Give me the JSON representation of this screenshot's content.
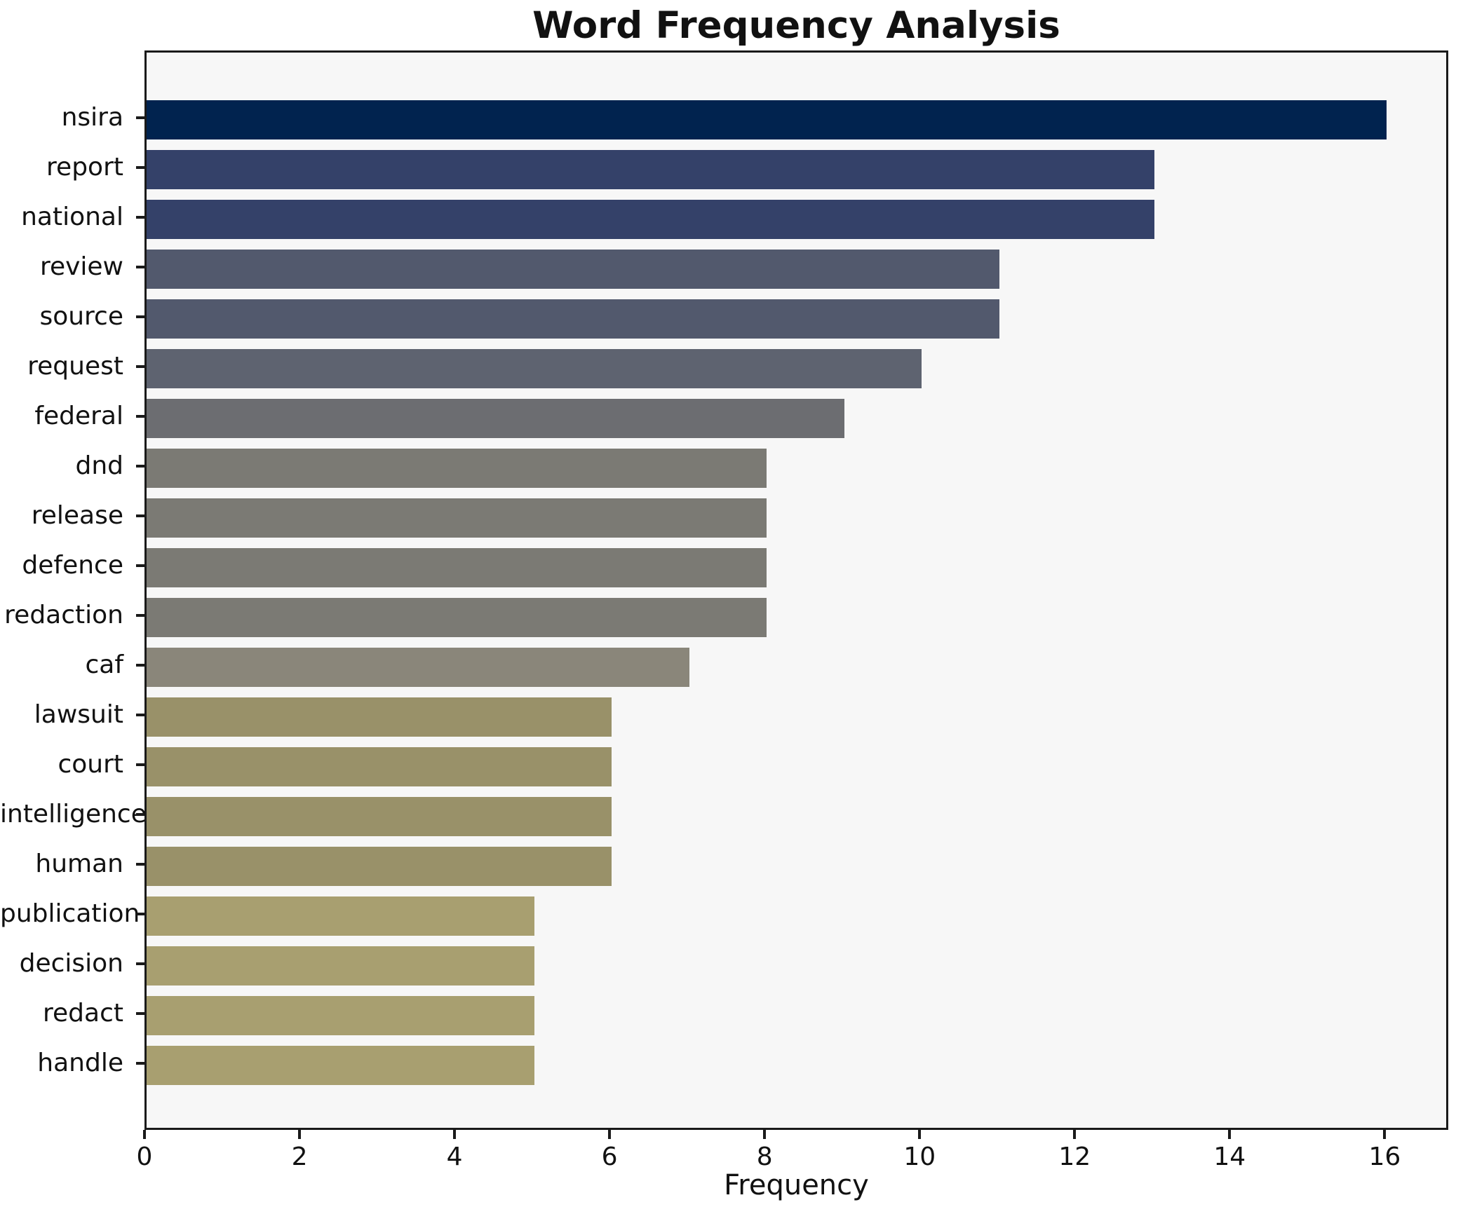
{
  "title": "Word Frequency Analysis",
  "xlabel": "Frequency",
  "colors": {
    "figure_background": "#ffffff",
    "plot_background": "#f7f7f7",
    "spine": "#1a1a1a",
    "text": "#111111"
  },
  "chart_data": {
    "type": "bar",
    "orientation": "horizontal",
    "title": "Word Frequency Analysis",
    "xlabel": "Frequency",
    "ylabel": "",
    "categories": [
      "nsira",
      "report",
      "national",
      "review",
      "source",
      "request",
      "federal",
      "dnd",
      "release",
      "defence",
      "redaction",
      "caf",
      "lawsuit",
      "court",
      "intelligence",
      "human",
      "publication",
      "decision",
      "redact",
      "handle"
    ],
    "values": [
      16,
      13,
      13,
      11,
      11,
      10,
      9,
      8,
      8,
      8,
      8,
      7,
      6,
      6,
      6,
      6,
      5,
      5,
      5,
      5
    ],
    "bar_colors": [
      "#01234f",
      "#344169",
      "#344169",
      "#52596d",
      "#52596d",
      "#5e6370",
      "#6c6d71",
      "#7b7a74",
      "#7b7a74",
      "#7b7a74",
      "#7b7a74",
      "#8a867a",
      "#999169",
      "#999169",
      "#999169",
      "#999169",
      "#a89f70",
      "#a89f70",
      "#a89f70",
      "#a89f70"
    ],
    "xlim": [
      0,
      16.82
    ],
    "xticks": [
      0,
      2,
      4,
      6,
      8,
      10,
      12,
      14,
      16
    ],
    "grid": false,
    "legend": null
  }
}
